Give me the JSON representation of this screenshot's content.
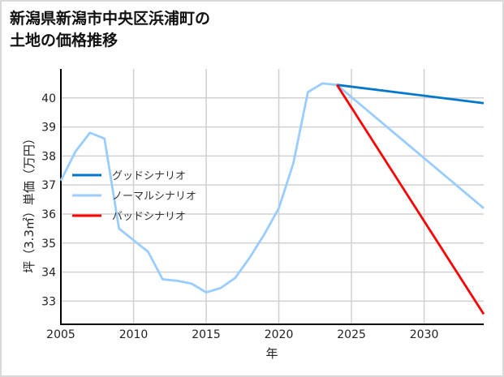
{
  "chart_data": {
    "type": "line",
    "title": "新潟県新潟市中央区浜浦町の\n土地の価格推移",
    "xlabel": "年",
    "ylabel": "坪（3.3㎡）単価（万円）",
    "xlim": [
      2005,
      2034.1
    ],
    "ylim": [
      32.2,
      41.0
    ],
    "xticks": [
      2005,
      2010,
      2015,
      2020,
      2025,
      2030
    ],
    "yticks": [
      33,
      34,
      35,
      36,
      37,
      38,
      39,
      40
    ],
    "grid": true,
    "legend_position": "center-left",
    "series": [
      {
        "name": "グッドシナリオ",
        "color": "#0077cc",
        "x": [
          2024,
          2034.1
        ],
        "y": [
          40.45,
          39.82
        ]
      },
      {
        "name": "ノーマルシナリオ",
        "color": "#99ccff",
        "x": [
          2005,
          2006,
          2007,
          2008,
          2009,
          2010,
          2011,
          2012,
          2013,
          2014,
          2015,
          2016,
          2017,
          2018,
          2019,
          2020,
          2021,
          2022,
          2023,
          2024,
          2034.1
        ],
        "y": [
          37.15,
          38.15,
          38.8,
          38.6,
          35.5,
          35.1,
          34.7,
          33.75,
          33.7,
          33.6,
          33.3,
          33.45,
          33.8,
          34.5,
          35.3,
          36.2,
          37.75,
          40.2,
          40.5,
          40.45,
          36.2
        ]
      },
      {
        "name": "バッドシナリオ",
        "color": "#ff0000",
        "x": [
          2024,
          2034.1
        ],
        "y": [
          40.45,
          32.55
        ]
      }
    ]
  }
}
